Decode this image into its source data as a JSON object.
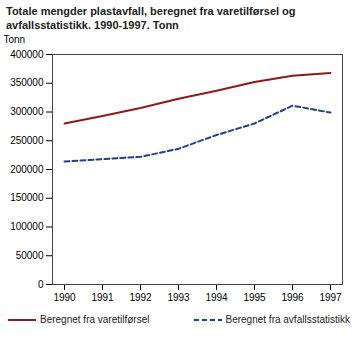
{
  "chart_data": {
    "type": "line",
    "title": "Totale mengder plastavfall, beregnet fra varetilførsel og avfallsstatistikk. 1990-1997. Tonn",
    "y_label": "Tonn",
    "categories": [
      "1990",
      "1991",
      "1992",
      "1993",
      "1994",
      "1995",
      "1996",
      "1997"
    ],
    "series": [
      {
        "name": "Beregnet fra varetilførsel",
        "color": "#8b1a1a",
        "line_style": "solid",
        "values": [
          280000,
          293000,
          307000,
          323000,
          337000,
          352000,
          363000,
          368000
        ]
      },
      {
        "name": "Beregnet fra avfallsstatistikk",
        "color": "#1f3f8f",
        "line_style": "dashed",
        "values": [
          214000,
          218000,
          222000,
          236000,
          260000,
          280000,
          311000,
          299000
        ]
      }
    ],
    "ylim": [
      0,
      400000
    ],
    "yticks": [
      0,
      50000,
      100000,
      150000,
      200000,
      250000,
      300000,
      350000,
      400000
    ],
    "grid": false,
    "legend": "bottom"
  }
}
